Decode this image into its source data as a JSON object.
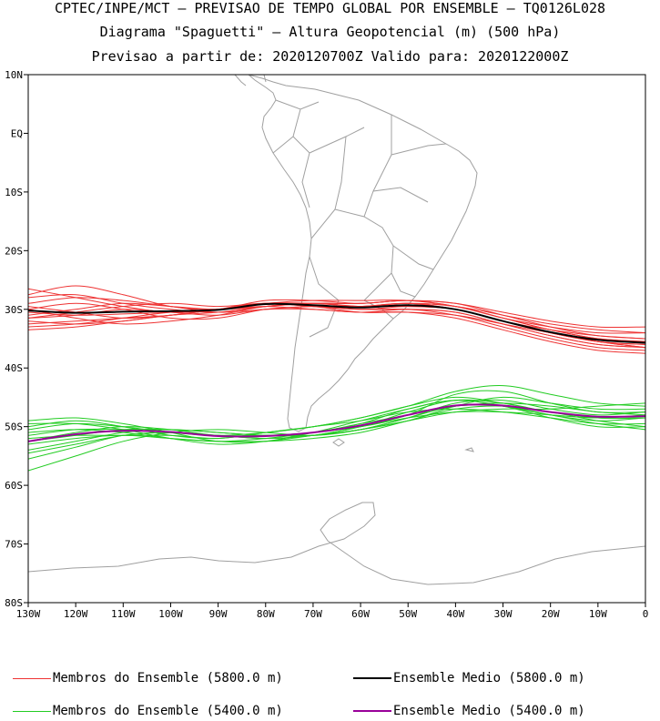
{
  "header": {
    "line1": "CPTEC/INPE/MCT — PREVISAO DE TEMPO GLOBAL POR ENSEMBLE — TQ0126L028",
    "line2": "Diagrama \"Spaguetti\" — Altura Geopotencial (m) (500 hPa)",
    "line3": "Previsao a partir de: 2020120700Z  Valido para: 2020122000Z"
  },
  "colors": {
    "member_5800": "#ee3333",
    "member_5400": "#22cc22",
    "mean_5800": "#000000",
    "mean_5400": "#990099",
    "coast": "#a0a0a0"
  },
  "chart_data": {
    "type": "line",
    "title": "Altura Geopotencial (m) (500 hPa)",
    "x_axis": {
      "range": [
        -130,
        0
      ],
      "ticks": [
        {
          "value": -130,
          "label": "130W"
        },
        {
          "value": -120,
          "label": "120W"
        },
        {
          "value": -110,
          "label": "110W"
        },
        {
          "value": -100,
          "label": "100W"
        },
        {
          "value": -90,
          "label": "90W"
        },
        {
          "value": -80,
          "label": "80W"
        },
        {
          "value": -70,
          "label": "70W"
        },
        {
          "value": -60,
          "label": "60W"
        },
        {
          "value": -50,
          "label": "50W"
        },
        {
          "value": -40,
          "label": "40W"
        },
        {
          "value": -30,
          "label": "30W"
        },
        {
          "value": -20,
          "label": "20W"
        },
        {
          "value": -10,
          "label": "10W"
        },
        {
          "value": 0,
          "label": "0"
        }
      ]
    },
    "y_axis": {
      "range": [
        -80,
        10
      ],
      "ticks": [
        {
          "value": 10,
          "label": "10N"
        },
        {
          "value": 0,
          "label": "EQ"
        },
        {
          "value": -10,
          "label": "10S"
        },
        {
          "value": -20,
          "label": "20S"
        },
        {
          "value": -30,
          "label": "30S"
        },
        {
          "value": -40,
          "label": "40S"
        },
        {
          "value": -50,
          "label": "50S"
        },
        {
          "value": -60,
          "label": "60S"
        },
        {
          "value": -70,
          "label": "70S"
        },
        {
          "value": -80,
          "label": "80S"
        }
      ]
    },
    "x": [
      -130,
      -120,
      -110,
      -100,
      -90,
      -80,
      -70,
      -60,
      -50,
      -40,
      -30,
      -20,
      -10,
      0
    ],
    "members_5800": [
      [
        -30.5,
        -31.0,
        -30.8,
        -30.5,
        -30.0,
        -29.0,
        -29.5,
        -30.0,
        -29.5,
        -30.0,
        -32.0,
        -34.0,
        -35.5,
        -36.0
      ],
      [
        -29.5,
        -30.5,
        -31.5,
        -31.0,
        -30.0,
        -29.0,
        -29.0,
        -29.5,
        -29.0,
        -29.5,
        -31.5,
        -33.5,
        -35.0,
        -35.5
      ],
      [
        -31.5,
        -31.0,
        -30.0,
        -30.5,
        -31.0,
        -30.0,
        -30.0,
        -30.5,
        -30.0,
        -30.5,
        -32.5,
        -34.5,
        -36.0,
        -36.5
      ],
      [
        -28.0,
        -27.5,
        -29.0,
        -30.0,
        -30.5,
        -29.5,
        -29.0,
        -29.0,
        -28.5,
        -29.0,
        -31.0,
        -33.0,
        -34.5,
        -35.0
      ],
      [
        -32.5,
        -32.0,
        -31.5,
        -31.0,
        -30.0,
        -29.0,
        -29.5,
        -30.0,
        -30.0,
        -31.0,
        -33.0,
        -35.0,
        -36.5,
        -37.0
      ],
      [
        -30.0,
        -29.0,
        -30.0,
        -31.5,
        -31.5,
        -30.0,
        -29.5,
        -29.5,
        -29.0,
        -30.0,
        -32.0,
        -33.5,
        -34.5,
        -35.0
      ],
      [
        -27.5,
        -26.0,
        -27.5,
        -29.5,
        -30.0,
        -29.0,
        -28.5,
        -28.5,
        -28.5,
        -29.5,
        -31.5,
        -33.0,
        -34.0,
        -34.0
      ],
      [
        -33.0,
        -32.5,
        -31.5,
        -30.5,
        -30.0,
        -29.5,
        -30.0,
        -30.5,
        -30.5,
        -31.5,
        -33.5,
        -35.5,
        -37.0,
        -37.5
      ],
      [
        -31.0,
        -30.0,
        -29.0,
        -29.5,
        -30.0,
        -29.5,
        -29.0,
        -29.0,
        -28.5,
        -29.0,
        -30.5,
        -32.0,
        -33.0,
        -33.0
      ],
      [
        -29.0,
        -28.0,
        -28.5,
        -29.5,
        -30.5,
        -30.0,
        -29.5,
        -30.0,
        -30.0,
        -30.5,
        -32.5,
        -34.5,
        -36.0,
        -36.5
      ],
      [
        -32.0,
        -32.5,
        -32.0,
        -31.0,
        -30.5,
        -29.5,
        -29.0,
        -29.5,
        -29.5,
        -30.0,
        -32.0,
        -34.0,
        -35.5,
        -36.0
      ],
      [
        -26.5,
        -28.0,
        -29.5,
        -30.5,
        -30.0,
        -28.5,
        -28.5,
        -29.0,
        -28.5,
        -29.5,
        -31.5,
        -33.5,
        -35.0,
        -35.5
      ],
      [
        -31.5,
        -30.5,
        -29.5,
        -29.0,
        -29.5,
        -29.0,
        -29.5,
        -30.5,
        -30.5,
        -31.0,
        -32.5,
        -34.0,
        -35.5,
        -36.5
      ],
      [
        -30.0,
        -31.5,
        -32.5,
        -32.0,
        -31.0,
        -29.5,
        -29.0,
        -29.5,
        -29.0,
        -29.5,
        -31.0,
        -32.5,
        -33.5,
        -34.0
      ],
      [
        -33.5,
        -33.0,
        -32.0,
        -31.0,
        -30.0,
        -29.0,
        -29.5,
        -29.5,
        -29.0,
        -30.0,
        -32.0,
        -34.0,
        -35.5,
        -36.5
      ]
    ],
    "mean_5800": [
      -30.2,
      -30.6,
      -30.4,
      -30.3,
      -30.1,
      -29.1,
      -29.3,
      -29.7,
      -29.3,
      -30.0,
      -32.0,
      -33.9,
      -35.2,
      -35.7
    ],
    "members_5400": [
      [
        -52.5,
        -51.0,
        -50.0,
        -50.5,
        -51.5,
        -51.5,
        -51.0,
        -50.0,
        -48.5,
        -47.5,
        -47.5,
        -48.0,
        -48.5,
        -48.0
      ],
      [
        -50.0,
        -49.0,
        -50.0,
        -51.5,
        -52.0,
        -51.0,
        -50.0,
        -48.5,
        -46.5,
        -45.0,
        -46.0,
        -47.5,
        -48.5,
        -48.5
      ],
      [
        -54.0,
        -52.5,
        -51.0,
        -50.5,
        -51.0,
        -51.5,
        -51.5,
        -50.5,
        -49.0,
        -46.5,
        -45.0,
        -46.0,
        -47.0,
        -47.0
      ],
      [
        -51.0,
        -50.5,
        -51.0,
        -52.0,
        -52.5,
        -52.0,
        -51.0,
        -49.5,
        -47.0,
        -45.5,
        -46.5,
        -48.5,
        -50.0,
        -50.0
      ],
      [
        -55.5,
        -53.5,
        -51.5,
        -51.0,
        -51.5,
        -52.0,
        -51.5,
        -50.0,
        -48.0,
        -44.5,
        -44.0,
        -46.0,
        -47.5,
        -47.5
      ],
      [
        -49.0,
        -48.5,
        -49.5,
        -51.0,
        -52.5,
        -52.5,
        -51.5,
        -50.5,
        -48.5,
        -46.0,
        -45.5,
        -47.0,
        -48.0,
        -47.5
      ],
      [
        -52.0,
        -51.5,
        -51.5,
        -51.5,
        -52.0,
        -51.0,
        -50.0,
        -49.0,
        -47.5,
        -47.0,
        -47.5,
        -48.5,
        -49.5,
        -49.5
      ],
      [
        -57.5,
        -55.0,
        -52.5,
        -51.0,
        -50.5,
        -51.0,
        -51.5,
        -50.5,
        -48.5,
        -46.5,
        -46.5,
        -48.0,
        -49.5,
        -50.5
      ],
      [
        -50.5,
        -49.5,
        -50.0,
        -51.0,
        -51.5,
        -51.0,
        -50.0,
        -48.5,
        -46.5,
        -44.0,
        -43.0,
        -44.5,
        -46.0,
        -46.5
      ],
      [
        -53.0,
        -52.0,
        -51.5,
        -52.0,
        -52.5,
        -52.5,
        -52.0,
        -51.0,
        -49.0,
        -47.0,
        -46.5,
        -47.5,
        -49.0,
        -50.0
      ],
      [
        -51.5,
        -50.5,
        -50.5,
        -51.0,
        -51.5,
        -52.0,
        -51.5,
        -50.0,
        -47.5,
        -45.5,
        -46.0,
        -47.5,
        -48.5,
        -48.5
      ],
      [
        -54.5,
        -53.0,
        -51.5,
        -51.0,
        -51.5,
        -51.5,
        -51.0,
        -49.5,
        -48.0,
        -46.5,
        -46.0,
        -46.5,
        -47.5,
        -48.0
      ],
      [
        -49.5,
        -49.5,
        -50.5,
        -52.0,
        -53.0,
        -52.5,
        -51.0,
        -49.0,
        -47.0,
        -45.5,
        -46.5,
        -48.0,
        -49.0,
        -48.5
      ],
      [
        -52.5,
        -51.5,
        -50.5,
        -50.5,
        -51.0,
        -51.5,
        -51.5,
        -50.5,
        -49.0,
        -47.5,
        -47.0,
        -47.0,
        -46.5,
        -46.0
      ]
    ],
    "mean_5400": [
      -52.5,
      -51.3,
      -50.7,
      -50.9,
      -51.6,
      -51.6,
      -51.0,
      -49.8,
      -48.0,
      -46.4,
      -46.4,
      -47.5,
      -48.3,
      -48.2
    ]
  },
  "legend": {
    "member_5800": "Membros do Ensemble (5800.0 m)",
    "mean_5800": "Ensemble Medio (5800.0 m)",
    "member_5400": "Membros do Ensemble (5400.0 m)",
    "mean_5400": "Ensemble Medio (5400.0 m)"
  }
}
